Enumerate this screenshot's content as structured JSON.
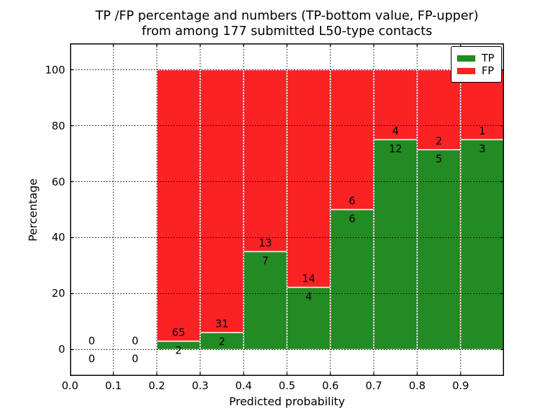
{
  "chart_data": {
    "type": "bar",
    "stacked": true,
    "units": "percent",
    "title_lines": [
      "TP /FP percentage and numbers (TP-bottom value, FP-upper)",
      "from among 177 submitted L50-type contacts"
    ],
    "total_contacts": 177,
    "xlabel": "Predicted probability",
    "ylabel": "Percentage",
    "xlim": [
      0.0,
      1.0
    ],
    "ylim": [
      -9.4,
      109.4
    ],
    "grid": "dotted",
    "legend_position": "upper right",
    "xticks": [
      {
        "value": 0.0,
        "label": "0.0"
      },
      {
        "value": 0.1,
        "label": "0.1"
      },
      {
        "value": 0.2,
        "label": "0.2"
      },
      {
        "value": 0.3,
        "label": "0.3"
      },
      {
        "value": 0.4,
        "label": "0.4"
      },
      {
        "value": 0.5,
        "label": "0.5"
      },
      {
        "value": 0.6,
        "label": "0.6"
      },
      {
        "value": 0.7,
        "label": "0.7"
      },
      {
        "value": 0.8,
        "label": "0.8"
      },
      {
        "value": 0.9,
        "label": "0.9"
      }
    ],
    "yticks": [
      {
        "value": 0,
        "label": "0"
      },
      {
        "value": 20,
        "label": "20"
      },
      {
        "value": 40,
        "label": "40"
      },
      {
        "value": 60,
        "label": "60"
      },
      {
        "value": 80,
        "label": "80"
      },
      {
        "value": 100,
        "label": "100"
      }
    ],
    "bins": [
      {
        "range": [
          0.0,
          0.1
        ],
        "tp": 0,
        "fp": 0
      },
      {
        "range": [
          0.1,
          0.2
        ],
        "tp": 0,
        "fp": 0
      },
      {
        "range": [
          0.2,
          0.3
        ],
        "tp": 2,
        "fp": 65
      },
      {
        "range": [
          0.3,
          0.4
        ],
        "tp": 2,
        "fp": 31
      },
      {
        "range": [
          0.4,
          0.5
        ],
        "tp": 7,
        "fp": 13
      },
      {
        "range": [
          0.5,
          0.6
        ],
        "tp": 4,
        "fp": 14
      },
      {
        "range": [
          0.6,
          0.7
        ],
        "tp": 6,
        "fp": 6
      },
      {
        "range": [
          0.7,
          0.8
        ],
        "tp": 12,
        "fp": 4
      },
      {
        "range": [
          0.8,
          0.9
        ],
        "tp": 5,
        "fp": 2
      },
      {
        "range": [
          0.9,
          1.0
        ],
        "tp": 3,
        "fp": 1
      }
    ],
    "colors": {
      "tp": "#238b23",
      "fp": "#fa2323",
      "bar_edge": "#ffffff",
      "frame": "#000000",
      "text": "#000000"
    },
    "legend": {
      "entries": [
        {
          "label": "TP",
          "color": "#238b23"
        },
        {
          "label": "FP",
          "color": "#fa2323"
        }
      ]
    }
  }
}
